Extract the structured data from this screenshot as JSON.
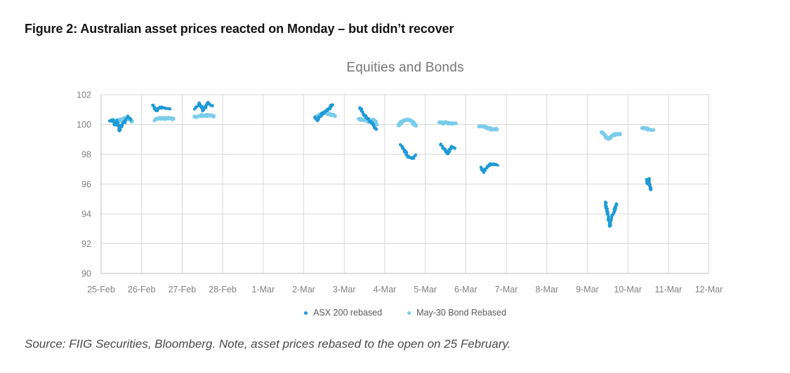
{
  "figure": {
    "title": "Figure 2: Australian asset prices reacted on Monday – but didn’t recover",
    "source": "Source: FIIG Securities, Bloomberg. Note, asset prices rebased to the open on 25 February."
  },
  "chart": {
    "title": "Equities and Bonds",
    "colors": {
      "asx_blue": "#1e9ad6",
      "bond_blue": "#7accea",
      "gridline": "#d9d9d9",
      "axis_line": "#bfbfbf",
      "tick_label": "#808080",
      "chart_title": "#767676",
      "legend_text": "#595959"
    }
  },
  "chart_data": {
    "type": "scatter",
    "title": "Equities and Bonds",
    "x_tick_labels": [
      "25-Feb",
      "26-Feb",
      "27-Feb",
      "28-Feb",
      "1-Mar",
      "2-Mar",
      "3-Mar",
      "4-Mar",
      "5-Mar",
      "6-Mar",
      "7-Mar",
      "8-Mar",
      "9-Mar",
      "10-Mar",
      "11-Mar",
      "12-Mar"
    ],
    "y_ticks": [
      90,
      92,
      94,
      96,
      98,
      100,
      102
    ],
    "ylim": [
      90,
      102
    ],
    "grid": true,
    "legend_position": "bottom",
    "note": "Intraday price clouds per trading day; each cluster listed as [fraction-of-day, rebased price] control points read from the plot",
    "series": [
      {
        "name": "ASX 200 rebased",
        "color": "#1e9ad6",
        "dot_radius": 2.1,
        "jitter": 1.1,
        "clusters": [
          {
            "date": "25-Feb",
            "day": 0,
            "points": [
              [
                0.2,
                100.2
              ],
              [
                0.28,
                100.35
              ],
              [
                0.34,
                99.95
              ],
              [
                0.4,
                100.25
              ],
              [
                0.45,
                99.55
              ],
              [
                0.52,
                100.05
              ],
              [
                0.6,
                100.2
              ],
              [
                0.66,
                100.55
              ],
              [
                0.74,
                100.3
              ]
            ]
          },
          {
            "date": "26-Feb",
            "day": 1,
            "points": [
              [
                0.28,
                101.3
              ],
              [
                0.34,
                101.0
              ],
              [
                0.38,
                100.9
              ],
              [
                0.44,
                101.15
              ],
              [
                0.55,
                101.1
              ],
              [
                0.68,
                101.05
              ]
            ]
          },
          {
            "date": "27-Feb",
            "day": 2,
            "points": [
              [
                0.32,
                101.05
              ],
              [
                0.42,
                101.4
              ],
              [
                0.52,
                100.95
              ],
              [
                0.64,
                101.45
              ],
              [
                0.74,
                101.25
              ]
            ]
          },
          {
            "date": "2-Mar",
            "day": 5,
            "points": [
              [
                0.28,
                100.5
              ],
              [
                0.33,
                100.28
              ],
              [
                0.4,
                100.55
              ],
              [
                0.5,
                100.8
              ],
              [
                0.6,
                101.0
              ],
              [
                0.7,
                101.35
              ]
            ]
          },
          {
            "date": "3-Mar",
            "day": 6,
            "points": [
              [
                0.37,
                101.15
              ],
              [
                0.45,
                100.85
              ],
              [
                0.55,
                100.45
              ],
              [
                0.65,
                100.15
              ],
              [
                0.73,
                99.95
              ],
              [
                0.8,
                99.65
              ]
            ]
          },
          {
            "date": "4-Mar",
            "day": 7,
            "points": [
              [
                0.39,
                98.65
              ],
              [
                0.48,
                98.3
              ],
              [
                0.58,
                97.85
              ],
              [
                0.68,
                97.75
              ],
              [
                0.78,
                97.95
              ]
            ]
          },
          {
            "date": "5-Mar",
            "day": 8,
            "points": [
              [
                0.38,
                98.7
              ],
              [
                0.48,
                98.3
              ],
              [
                0.55,
                98.0
              ],
              [
                0.64,
                98.5
              ],
              [
                0.74,
                98.4
              ]
            ]
          },
          {
            "date": "6-Mar",
            "day": 9,
            "points": [
              [
                0.37,
                97.1
              ],
              [
                0.44,
                96.8
              ],
              [
                0.52,
                97.1
              ],
              [
                0.62,
                97.35
              ],
              [
                0.78,
                97.3
              ]
            ]
          },
          {
            "date": "9-Mar",
            "day": 12,
            "points": [
              [
                0.44,
                94.75
              ],
              [
                0.5,
                94.0
              ],
              [
                0.56,
                93.2
              ],
              [
                0.62,
                93.85
              ],
              [
                0.68,
                94.3
              ],
              [
                0.73,
                94.65
              ]
            ]
          },
          {
            "date": "10-Mar",
            "day": 13,
            "points": [
              [
                0.45,
                96.3
              ],
              [
                0.48,
                96.05
              ],
              [
                0.51,
                96.35
              ],
              [
                0.54,
                95.9
              ],
              [
                0.57,
                95.6
              ]
            ]
          }
        ]
      },
      {
        "name": "May-30 Bond Rebased",
        "color": "#7accea",
        "dot_radius": 2.8,
        "jitter": 0.9,
        "clusters": [
          {
            "date": "25-Feb",
            "day": 0,
            "points": [
              [
                0.22,
                100.25
              ],
              [
                0.35,
                100.2
              ],
              [
                0.5,
                100.3
              ],
              [
                0.62,
                100.45
              ],
              [
                0.76,
                100.25
              ]
            ]
          },
          {
            "date": "26-Feb",
            "day": 1,
            "points": [
              [
                0.32,
                100.3
              ],
              [
                0.45,
                100.42
              ],
              [
                0.6,
                100.4
              ],
              [
                0.78,
                100.38
              ]
            ]
          },
          {
            "date": "27-Feb",
            "day": 2,
            "points": [
              [
                0.32,
                100.5
              ],
              [
                0.48,
                100.6
              ],
              [
                0.64,
                100.6
              ],
              [
                0.77,
                100.55
              ]
            ]
          },
          {
            "date": "2-Mar",
            "day": 5,
            "points": [
              [
                0.3,
                100.5
              ],
              [
                0.42,
                100.7
              ],
              [
                0.52,
                100.8
              ],
              [
                0.63,
                100.7
              ],
              [
                0.76,
                100.6
              ]
            ]
          },
          {
            "date": "3-Mar",
            "day": 6,
            "points": [
              [
                0.35,
                100.35
              ],
              [
                0.5,
                100.3
              ],
              [
                0.62,
                100.2
              ],
              [
                0.72,
                100.3
              ],
              [
                0.8,
                100.0
              ]
            ]
          },
          {
            "date": "4-Mar",
            "day": 7,
            "points": [
              [
                0.34,
                99.95
              ],
              [
                0.44,
                100.2
              ],
              [
                0.55,
                100.3
              ],
              [
                0.66,
                100.25
              ],
              [
                0.77,
                99.9
              ]
            ]
          },
          {
            "date": "5-Mar",
            "day": 8,
            "points": [
              [
                0.36,
                100.1
              ],
              [
                0.55,
                100.12
              ],
              [
                0.76,
                100.05
              ]
            ]
          },
          {
            "date": "6-Mar",
            "day": 9,
            "points": [
              [
                0.33,
                99.9
              ],
              [
                0.48,
                99.85
              ],
              [
                0.62,
                99.7
              ],
              [
                0.77,
                99.65
              ]
            ]
          },
          {
            "date": "9-Mar",
            "day": 12,
            "points": [
              [
                0.37,
                99.45
              ],
              [
                0.46,
                99.15
              ],
              [
                0.54,
                99.05
              ],
              [
                0.63,
                99.3
              ],
              [
                0.81,
                99.35
              ]
            ]
          },
          {
            "date": "10-Mar",
            "day": 13,
            "points": [
              [
                0.36,
                99.75
              ],
              [
                0.48,
                99.7
              ],
              [
                0.62,
                99.6
              ]
            ]
          }
        ]
      }
    ]
  }
}
